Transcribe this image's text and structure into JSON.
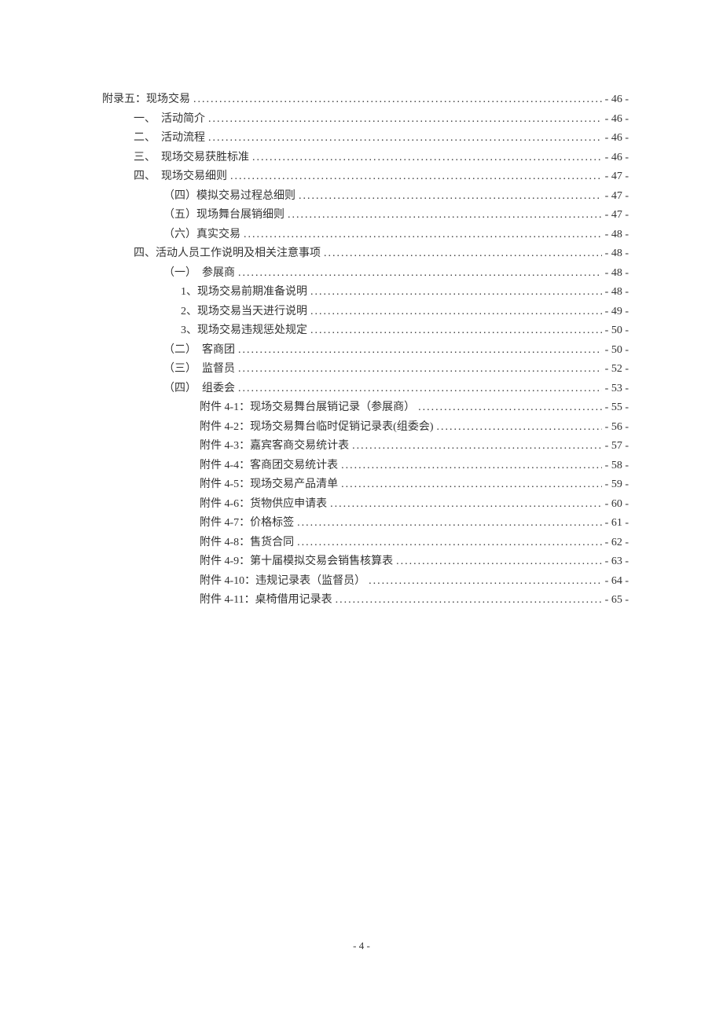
{
  "entries": [
    {
      "indent": 0,
      "label": "附录五：现场交易",
      "page": "- 46 -"
    },
    {
      "indent": 1,
      "label": "一、　活动简介",
      "page": "- 46 -"
    },
    {
      "indent": 1,
      "label": "二、　活动流程",
      "page": "- 46 -"
    },
    {
      "indent": 1,
      "label": "三、　现场交易获胜标准",
      "page": "- 46 -"
    },
    {
      "indent": 1,
      "label": "四、　现场交易细则",
      "page": "- 47 -"
    },
    {
      "indent": 2,
      "label": "（四）模拟交易过程总细则",
      "page": "- 47 -"
    },
    {
      "indent": 2,
      "label": "（五）现场舞台展销细则",
      "page": "- 47 -"
    },
    {
      "indent": 2,
      "label": "（六）真实交易",
      "page": "- 48 -"
    },
    {
      "indent": 1,
      "label": "四、活动人员工作说明及相关注意事项",
      "page": "- 48 -"
    },
    {
      "indent": 2,
      "label": "（一）　参展商",
      "page": "- 48 -"
    },
    {
      "indent": 3,
      "label": "1、现场交易前期准备说明",
      "page": "- 48 -"
    },
    {
      "indent": 3,
      "label": "2、现场交易当天进行说明",
      "page": "- 49 -"
    },
    {
      "indent": 3,
      "label": "3、现场交易违规惩处规定",
      "page": "- 50 -"
    },
    {
      "indent": 2,
      "label": "（二）　客商团",
      "page": "- 50 -"
    },
    {
      "indent": 2,
      "label": "（三）　监督员",
      "page": "- 52 -"
    },
    {
      "indent": 2,
      "label": "（四）　组委会",
      "page": "- 53 -"
    },
    {
      "indent": 4,
      "label": "附件 4-1：现场交易舞台展销记录（参展商）",
      "page": "- 55 -"
    },
    {
      "indent": 4,
      "label": "附件 4-2：现场交易舞台临时促销记录表(组委会)",
      "page": "- 56 -"
    },
    {
      "indent": 4,
      "label": "附件 4-3：嘉宾客商交易统计表",
      "page": "- 57 -"
    },
    {
      "indent": 4,
      "label": "附件 4-4：客商团交易统计表",
      "page": "- 58 -"
    },
    {
      "indent": 4,
      "label": "附件 4-5：现场交易产品清单",
      "page": "- 59 -"
    },
    {
      "indent": 4,
      "label": "附件 4-6：货物供应申请表",
      "page": "- 60 -"
    },
    {
      "indent": 4,
      "label": "附件 4-7：价格标签",
      "page": "- 61 -"
    },
    {
      "indent": 4,
      "label": "附件 4-8：售货合同",
      "page": "- 62 -"
    },
    {
      "indent": 4,
      "label": "附件 4-9：第十届模拟交易会销售核算表",
      "page": "- 63 -"
    },
    {
      "indent": 4,
      "label": "附件 4-10：违规记录表（监督员）",
      "page": "- 64 -"
    },
    {
      "indent": 4,
      "label": "附件 4-11：桌椅借用记录表",
      "page": "- 65 -"
    }
  ],
  "footer": "- 4 -"
}
